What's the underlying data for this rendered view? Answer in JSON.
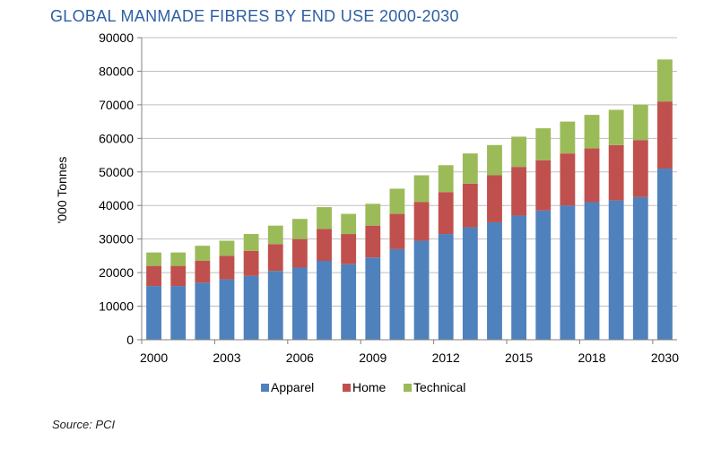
{
  "title": "GLOBAL MANMADE FIBRES BY END USE 2000-2030",
  "source": "Source: PCI",
  "colors": {
    "apparel": "#4f81bd",
    "home": "#c0504d",
    "technical": "#9bbb59",
    "grid": "#bfbfbf",
    "axis": "#808080"
  },
  "chart_data": {
    "type": "bar",
    "stacked": true,
    "title": "GLOBAL MANMADE FIBRES BY END USE 2000-2030",
    "xlabel": "",
    "ylabel": "'000 Tonnes",
    "ylim": [
      0,
      90000
    ],
    "yticks": [
      0,
      10000,
      20000,
      30000,
      40000,
      50000,
      60000,
      70000,
      80000,
      90000
    ],
    "grid": true,
    "legend": "bottom",
    "categories": [
      "2000",
      "2001",
      "2002",
      "2003",
      "2004",
      "2005",
      "2006",
      "2007",
      "2008",
      "2009",
      "2010",
      "2011",
      "2012",
      "2013",
      "2014",
      "2015",
      "2016",
      "2017",
      "2018",
      "2019",
      "2020",
      "2030"
    ],
    "xtick_labels": [
      "2000",
      "",
      "",
      "2003",
      "",
      "",
      "2006",
      "",
      "",
      "2009",
      "",
      "",
      "2012",
      "",
      "",
      "2015",
      "",
      "",
      "2018",
      "",
      "",
      "2030"
    ],
    "series": [
      {
        "name": "Apparel",
        "color": "#4f81bd",
        "values": [
          16000,
          16000,
          17000,
          18000,
          19000,
          20500,
          21500,
          23500,
          22500,
          24500,
          27000,
          29500,
          31500,
          33500,
          35000,
          37000,
          38500,
          40000,
          41000,
          41500,
          42500,
          51000
        ]
      },
      {
        "name": "Home",
        "color": "#c0504d",
        "values": [
          6000,
          6000,
          6500,
          7000,
          7500,
          8000,
          8500,
          9500,
          9000,
          9500,
          10500,
          11500,
          12500,
          13000,
          14000,
          14500,
          15000,
          15500,
          16000,
          16500,
          17000,
          20000
        ]
      },
      {
        "name": "Technical",
        "color": "#9bbb59",
        "values": [
          4000,
          4000,
          4500,
          4500,
          5000,
          5500,
          6000,
          6500,
          6000,
          6500,
          7500,
          8000,
          8000,
          9000,
          9000,
          9000,
          9500,
          9500,
          10000,
          10500,
          10500,
          12500
        ]
      }
    ]
  }
}
